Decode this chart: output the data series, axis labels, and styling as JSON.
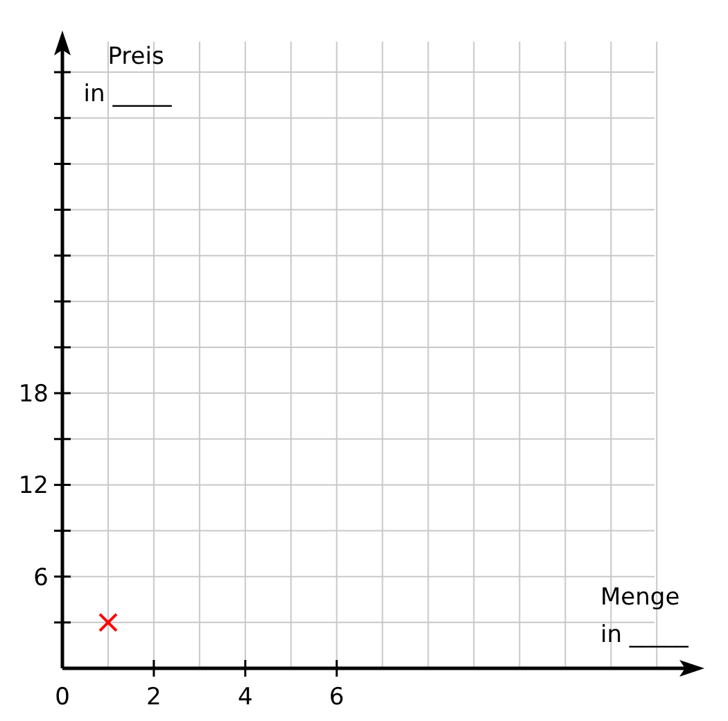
{
  "chart_data": {
    "type": "scatter",
    "xlabel": "Menge\nin _____",
    "ylabel": "Preis\nin _____",
    "x": [
      1
    ],
    "series": [
      {
        "color": "#ff0000",
        "values": [
          3
        ]
      }
    ],
    "marker": "cross",
    "grid": true,
    "xlim": [
      0,
      13.8
    ],
    "ylim": [
      0,
      41
    ],
    "xticks": [
      {
        "value": 0,
        "label": "0"
      },
      {
        "value": 1,
        "label": null
      },
      2,
      {
        "value": 3,
        "label": null
      },
      4,
      {
        "value": 5,
        "label": null
      },
      6,
      {
        "value": 7,
        "label": null
      },
      {
        "value": 8,
        "label": null
      },
      {
        "value": 9,
        "label": null
      },
      {
        "value": 10,
        "label": null
      },
      {
        "value": 11,
        "label": null
      },
      {
        "value": 12,
        "label": null
      },
      {
        "value": 13,
        "label": null
      }
    ],
    "yticks": [
      {
        "value": 3,
        "label": null
      },
      6,
      {
        "value": 9,
        "label": null
      },
      12,
      {
        "value": 15,
        "label": null
      },
      18,
      {
        "value": 21,
        "label": null
      },
      {
        "value": 24,
        "label": null
      },
      {
        "value": 27,
        "label": null
      },
      {
        "value": 30,
        "label": null
      },
      {
        "value": 33,
        "label": null
      },
      {
        "value": 36,
        "label": null
      },
      {
        "value": 39,
        "label": null
      }
    ]
  }
}
